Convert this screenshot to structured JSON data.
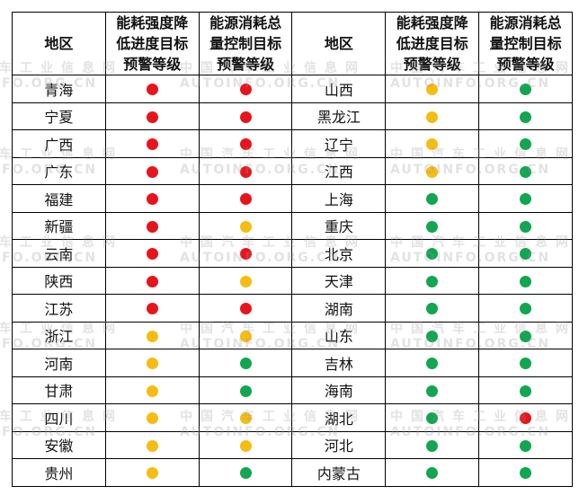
{
  "headers": [
    "地区",
    "能耗强度降低进度目标预警等级",
    "能源消耗总量控制目标预警等级",
    "地区",
    "能耗强度降低进度目标预警等级",
    "能源消耗总量控制目标预警等级"
  ],
  "header_lines": [
    [
      "地区"
    ],
    [
      "能耗强度降",
      "低进度目标",
      "预警等级"
    ],
    [
      "能源消耗总",
      "量控制目标",
      "预警等级"
    ]
  ],
  "colors": {
    "red": "#e8141b",
    "yellow": "#f7bc12",
    "green": "#12a650"
  },
  "rows": [
    {
      "left": {
        "region": "青海",
        "intensity": "red",
        "total": "red"
      },
      "right": {
        "region": "山西",
        "intensity": "yellow",
        "total": "green"
      }
    },
    {
      "left": {
        "region": "宁夏",
        "intensity": "red",
        "total": "red"
      },
      "right": {
        "region": "黑龙江",
        "intensity": "yellow",
        "total": "green"
      }
    },
    {
      "left": {
        "region": "广西",
        "intensity": "red",
        "total": "red"
      },
      "right": {
        "region": "辽宁",
        "intensity": "yellow",
        "total": "green"
      }
    },
    {
      "left": {
        "region": "广东",
        "intensity": "red",
        "total": "red"
      },
      "right": {
        "region": "江西",
        "intensity": "yellow",
        "total": "green"
      }
    },
    {
      "left": {
        "region": "福建",
        "intensity": "red",
        "total": "red"
      },
      "right": {
        "region": "上海",
        "intensity": "green",
        "total": "green"
      }
    },
    {
      "left": {
        "region": "新疆",
        "intensity": "red",
        "total": "yellow"
      },
      "right": {
        "region": "重庆",
        "intensity": "green",
        "total": "green"
      }
    },
    {
      "left": {
        "region": "云南",
        "intensity": "red",
        "total": "red"
      },
      "right": {
        "region": "北京",
        "intensity": "green",
        "total": "green"
      }
    },
    {
      "left": {
        "region": "陕西",
        "intensity": "red",
        "total": "yellow"
      },
      "right": {
        "region": "天津",
        "intensity": "green",
        "total": "green"
      }
    },
    {
      "left": {
        "region": "江苏",
        "intensity": "red",
        "total": "red"
      },
      "right": {
        "region": "湖南",
        "intensity": "green",
        "total": "green"
      }
    },
    {
      "left": {
        "region": "浙江",
        "intensity": "yellow",
        "total": "yellow"
      },
      "right": {
        "region": "山东",
        "intensity": "green",
        "total": "green"
      }
    },
    {
      "left": {
        "region": "河南",
        "intensity": "yellow",
        "total": "green"
      },
      "right": {
        "region": "吉林",
        "intensity": "green",
        "total": "green"
      }
    },
    {
      "left": {
        "region": "甘肃",
        "intensity": "yellow",
        "total": "green"
      },
      "right": {
        "region": "海南",
        "intensity": "green",
        "total": "green"
      }
    },
    {
      "left": {
        "region": "四川",
        "intensity": "yellow",
        "total": "yellow"
      },
      "right": {
        "region": "湖北",
        "intensity": "green",
        "total": "red"
      }
    },
    {
      "left": {
        "region": "安徽",
        "intensity": "yellow",
        "total": "yellow"
      },
      "right": {
        "region": "河北",
        "intensity": "green",
        "total": "green"
      }
    },
    {
      "left": {
        "region": "贵州",
        "intensity": "yellow",
        "total": "green"
      },
      "right": {
        "region": "内蒙古",
        "intensity": "green",
        "total": "green"
      }
    }
  ],
  "watermark": {
    "cn": "中国汽车工业信息网",
    "en": "AUTOINFO.ORG.CN"
  }
}
